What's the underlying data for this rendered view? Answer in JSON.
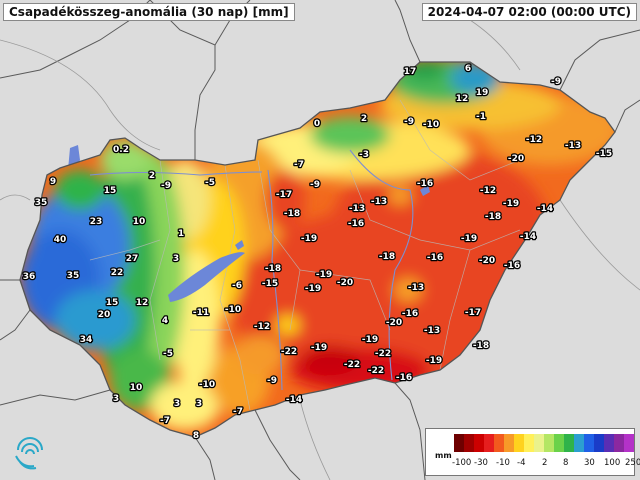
{
  "header": {
    "title": "Csapadékösszeg-anomália (30 nap) [mm]",
    "timestamp": "2024-04-07 02:00 (00:00 UTC)"
  },
  "legend": {
    "unit": "mm",
    "colors": [
      "#6e0000",
      "#a00000",
      "#cc0000",
      "#e61e1e",
      "#f25a1e",
      "#f79a28",
      "#ffd21e",
      "#fff05a",
      "#eaf28c",
      "#b4e664",
      "#6ad24a",
      "#2fb34a",
      "#2c9fd0",
      "#2060e6",
      "#1a3cc8",
      "#5a2eb4",
      "#8c28a0",
      "#b432c8"
    ],
    "ticks": [
      "-100",
      "-30",
      "-10",
      "-4",
      "2",
      "8",
      "30",
      "100",
      "250"
    ]
  },
  "values": [
    {
      "text": "17"
    },
    {
      "text": "6"
    },
    {
      "text": "19"
    },
    {
      "text": "12"
    },
    {
      "text": "-9"
    },
    {
      "text": "-1"
    },
    {
      "text": "0"
    },
    {
      "text": "2"
    },
    {
      "text": "-9"
    },
    {
      "text": "-10"
    },
    {
      "text": "-3"
    },
    {
      "text": "-12"
    },
    {
      "text": "-13"
    },
    {
      "text": "-15"
    },
    {
      "text": "-20"
    },
    {
      "text": "0.2"
    },
    {
      "text": "9"
    },
    {
      "text": "15"
    },
    {
      "text": "2"
    },
    {
      "text": "-9"
    },
    {
      "text": "-5"
    },
    {
      "text": "-7"
    },
    {
      "text": "-9"
    },
    {
      "text": "-16"
    },
    {
      "text": "-12"
    },
    {
      "text": "35"
    },
    {
      "text": "23"
    },
    {
      "text": "10"
    },
    {
      "text": "-17"
    },
    {
      "text": "-18"
    },
    {
      "text": "-13"
    },
    {
      "text": "-13"
    },
    {
      "text": "-19"
    },
    {
      "text": "-18"
    },
    {
      "text": "-14"
    },
    {
      "text": "40"
    },
    {
      "text": "1"
    },
    {
      "text": "-19"
    },
    {
      "text": "-16"
    },
    {
      "text": "-19"
    },
    {
      "text": "-14"
    },
    {
      "text": "27"
    },
    {
      "text": "3"
    },
    {
      "text": "-18"
    },
    {
      "text": "-18"
    },
    {
      "text": "-16"
    },
    {
      "text": "-20"
    },
    {
      "text": "-16"
    },
    {
      "text": "36"
    },
    {
      "text": "35"
    },
    {
      "text": "22"
    },
    {
      "text": "-19"
    },
    {
      "text": "-20"
    },
    {
      "text": "-6"
    },
    {
      "text": "-15"
    },
    {
      "text": "-19"
    },
    {
      "text": "-13"
    },
    {
      "text": "15"
    },
    {
      "text": "12"
    },
    {
      "text": "20"
    },
    {
      "text": "-11"
    },
    {
      "text": "-10"
    },
    {
      "text": "4"
    },
    {
      "text": "-20"
    },
    {
      "text": "-16"
    },
    {
      "text": "-17"
    },
    {
      "text": "-12"
    },
    {
      "text": "-13"
    },
    {
      "text": "34"
    },
    {
      "text": "-19"
    },
    {
      "text": "-19"
    },
    {
      "text": "-18"
    },
    {
      "text": "-22"
    },
    {
      "text": "-5"
    },
    {
      "text": "-22"
    },
    {
      "text": "-22"
    },
    {
      "text": "-22"
    },
    {
      "text": "-19"
    },
    {
      "text": "10"
    },
    {
      "text": "-10"
    },
    {
      "text": "-9"
    },
    {
      "text": "-16"
    },
    {
      "text": "3"
    },
    {
      "text": "3"
    },
    {
      "text": "3"
    },
    {
      "text": "-14"
    },
    {
      "text": "-7"
    },
    {
      "text": "-7"
    },
    {
      "text": "8"
    }
  ]
}
